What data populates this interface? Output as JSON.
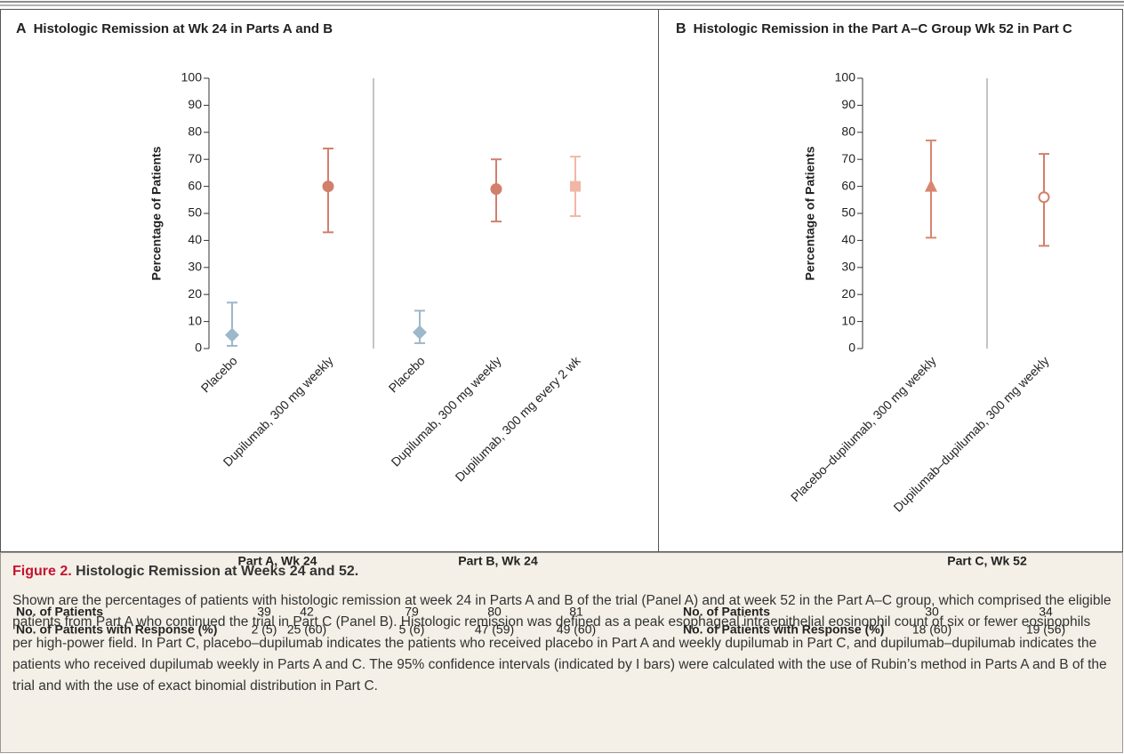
{
  "chart_data": [
    {
      "type": "pointrange",
      "panel": "A",
      "title": "Histologic Remission at Wk 24 in Parts A and B",
      "y_label": "Percentage of Patients",
      "ylim": [
        0,
        100
      ],
      "yticks": [
        0,
        10,
        20,
        30,
        40,
        50,
        60,
        70,
        80,
        90,
        100
      ],
      "table_labels": [
        "No. of Patients",
        "No. of Patients with Response (%)"
      ],
      "groups": [
        {
          "name": "Part A, Wk 24",
          "categories": [
            "Placebo",
            "Dupilumab, 300 mg weekly"
          ],
          "values": [
            5,
            60
          ],
          "ci_low": [
            1,
            43
          ],
          "ci_high": [
            17,
            74
          ],
          "markers": [
            "diamond",
            "circle"
          ],
          "colors": [
            "#9db7cb",
            "#d27f6b"
          ],
          "patients": [
            39,
            42
          ],
          "responders": [
            "2 (5)",
            "25 (60)"
          ]
        },
        {
          "name": "Part B, Wk 24",
          "categories": [
            "Placebo",
            "Dupilumab, 300 mg weekly",
            "Dupilumab, 300 mg every 2 wk"
          ],
          "values": [
            6,
            59,
            60
          ],
          "ci_low": [
            2,
            47,
            49
          ],
          "ci_high": [
            14,
            70,
            71
          ],
          "markers": [
            "diamond",
            "circle",
            "square"
          ],
          "colors": [
            "#9db7cb",
            "#d27f6b",
            "#f1b7a5"
          ],
          "patients": [
            79,
            80,
            81
          ],
          "responders": [
            "5 (6)",
            "47 (59)",
            "49 (60)"
          ]
        }
      ]
    },
    {
      "type": "pointrange",
      "panel": "B",
      "title": "Histologic Remission in the Part A–C Group Wk 52 in Part C",
      "y_label": "Percentage of Patients",
      "ylim": [
        0,
        100
      ],
      "yticks": [
        0,
        10,
        20,
        30,
        40,
        50,
        60,
        70,
        80,
        90,
        100
      ],
      "table_labels": [
        "No. of Patients",
        "No. of Patients with Response (%)"
      ],
      "groups": [
        {
          "name": "Part C, Wk 52",
          "categories": [
            "Placebo–dupilumab, 300 mg weekly",
            "Dupilumab–dupilumab, 300 mg weekly"
          ],
          "values": [
            60,
            56
          ],
          "ci_low": [
            41,
            38
          ],
          "ci_high": [
            77,
            72
          ],
          "markers": [
            "triangle",
            "circle-open"
          ],
          "colors": [
            "#d9866f",
            "#d27f6b"
          ],
          "patients": [
            30,
            34
          ],
          "responders": [
            "18 (60)",
            "19 (56)"
          ]
        }
      ]
    }
  ],
  "caption": {
    "label": "Figure 2.",
    "title": "Histologic Remission at Weeks 24 and 52.",
    "text": "Shown are the percentages of patients with histologic remission at week 24 in Parts A and B of the trial (Panel A) and at week 52 in the Part A–C group, which comprised the eligible patients from Part A who continued the trial in Part C (Panel B). Histologic remission was defined as a peak esophageal intraepithelial eosinophil count of six or fewer eosinophils per high-power field. In Part C, placebo–dupilumab indicates the patients who received placebo in Part A and weekly dupilumab in Part C, and dupilumab–dupilumab indicates the patients who received dupilumab weekly in Parts A and C. The 95% confidence intervals (indicated by I bars) were calculated with the use of Rubin’s method in Parts A and B of the trial and with the use of exact binomial distribution in Part C."
  }
}
